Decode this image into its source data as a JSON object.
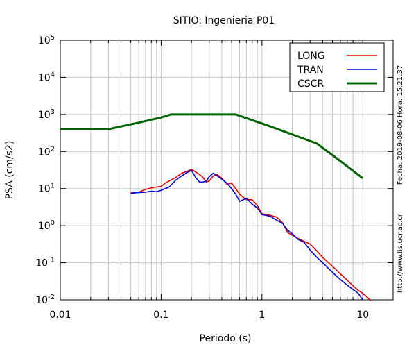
{
  "chart_data": {
    "type": "line",
    "title": "SITIO: Ingenieria P01",
    "xlabel": "Periodo (s)",
    "ylabel": "PSA (cm/s2)",
    "x_scale": "log",
    "y_scale": "log",
    "xlim": [
      0.01,
      20
    ],
    "ylim": [
      0.01,
      100000
    ],
    "grid": true,
    "legend_position": "top-right",
    "x_ticks": [
      {
        "value": 0.01,
        "label": "0.01"
      },
      {
        "value": 0.1,
        "label": "0.1"
      },
      {
        "value": 1,
        "label": "1"
      },
      {
        "value": 10,
        "label": "10"
      }
    ],
    "y_ticks": [
      {
        "value": 0.01,
        "base": "10",
        "exp": "-2"
      },
      {
        "value": 0.1,
        "base": "10",
        "exp": "-1"
      },
      {
        "value": 1,
        "base": "10",
        "exp": "0"
      },
      {
        "value": 10,
        "base": "10",
        "exp": "1"
      },
      {
        "value": 100,
        "base": "10",
        "exp": "2"
      },
      {
        "value": 1000,
        "base": "10",
        "exp": "3"
      },
      {
        "value": 10000,
        "base": "10",
        "exp": "4"
      },
      {
        "value": 100000,
        "base": "10",
        "exp": "5"
      }
    ],
    "side_text": {
      "date": "Fecha: 2019-08-06 Hora: 15:21:37",
      "url": "http://www.lis.ucr.ac.cr"
    },
    "series": [
      {
        "name": "LONG",
        "color": "#e00000",
        "x": [
          0.05,
          0.06,
          0.07,
          0.08,
          0.09,
          0.1,
          0.11,
          0.12,
          0.14,
          0.16,
          0.18,
          0.2,
          0.22,
          0.24,
          0.26,
          0.28,
          0.3,
          0.33,
          0.36,
          0.4,
          0.45,
          0.5,
          0.55,
          0.6,
          0.7,
          0.8,
          0.9,
          1.0,
          1.2,
          1.4,
          1.6,
          1.8,
          2.0,
          2.3,
          2.6,
          3.0,
          3.5,
          4.0,
          5.0,
          6.0,
          7.0,
          8.0,
          9.0,
          10.0,
          11.0,
          12.0
        ],
        "y": [
          8,
          8,
          9.5,
          10.5,
          11,
          11.5,
          14,
          16,
          20,
          26,
          29,
          33,
          28,
          24,
          20,
          15,
          16,
          22,
          24,
          19,
          13,
          14,
          10,
          7,
          5,
          5,
          3.5,
          2.1,
          1.9,
          1.7,
          1.2,
          0.65,
          0.55,
          0.45,
          0.38,
          0.32,
          0.21,
          0.14,
          0.08,
          0.05,
          0.034,
          0.024,
          0.018,
          0.015,
          0.012,
          0.0095
        ]
      },
      {
        "name": "TRAN",
        "color": "#0000e0",
        "x": [
          0.05,
          0.06,
          0.07,
          0.08,
          0.09,
          0.1,
          0.11,
          0.12,
          0.14,
          0.16,
          0.18,
          0.2,
          0.22,
          0.24,
          0.26,
          0.28,
          0.3,
          0.33,
          0.36,
          0.4,
          0.45,
          0.5,
          0.55,
          0.6,
          0.7,
          0.8,
          0.9,
          1.0,
          1.2,
          1.4,
          1.6,
          1.8,
          2.0,
          2.3,
          2.6,
          3.0,
          3.5,
          4.0,
          5.0,
          6.0,
          7.0,
          8.0,
          9.0,
          10.0
        ],
        "y": [
          7.5,
          7.8,
          8,
          8.5,
          8.2,
          9,
          10,
          11,
          17,
          22,
          27,
          31,
          20,
          15,
          15,
          16,
          21,
          26,
          22,
          18,
          14,
          10,
          7,
          4.5,
          5.5,
          3.8,
          3,
          2.0,
          1.8,
          1.4,
          1.15,
          0.75,
          0.6,
          0.42,
          0.36,
          0.22,
          0.14,
          0.1,
          0.055,
          0.035,
          0.025,
          0.019,
          0.015,
          0.01
        ]
      },
      {
        "name": "CSCR",
        "color": "#006400",
        "x": [
          0.01,
          0.03,
          0.06,
          0.1,
          0.125,
          0.2,
          0.3,
          0.55,
          0.8,
          1.2,
          1.8,
          2.5,
          3.5,
          5.0,
          7.0,
          10.0
        ],
        "y": [
          400,
          400,
          600,
          830,
          1000,
          1000,
          1000,
          1000,
          700,
          480,
          320,
          230,
          165,
          80,
          40,
          19
        ]
      }
    ]
  }
}
